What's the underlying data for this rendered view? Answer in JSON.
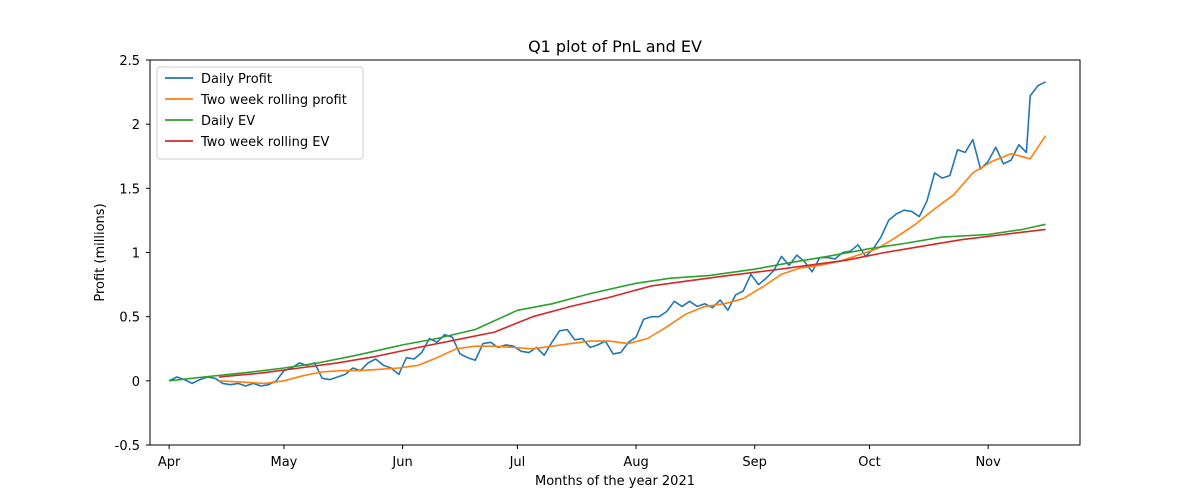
{
  "chart_data": {
    "type": "line",
    "title": "Q1 plot of PnL and EV",
    "xlabel": "Months of the year 2021",
    "ylabel": "Profit (millions)",
    "xlim": [
      "2021-03-27",
      "2021-11-25"
    ],
    "ylim": [
      -0.5,
      2.5
    ],
    "x_ticks": [
      {
        "date": "2021-04-01",
        "label": "Apr"
      },
      {
        "date": "2021-05-01",
        "label": "May"
      },
      {
        "date": "2021-06-01",
        "label": "Jun"
      },
      {
        "date": "2021-07-01",
        "label": "Jul"
      },
      {
        "date": "2021-08-01",
        "label": "Aug"
      },
      {
        "date": "2021-09-01",
        "label": "Sep"
      },
      {
        "date": "2021-10-01",
        "label": "Oct"
      },
      {
        "date": "2021-11-01",
        "label": "Nov"
      }
    ],
    "y_ticks": [
      {
        "value": -0.5,
        "label": "-0.5"
      },
      {
        "value": 0,
        "label": "0"
      },
      {
        "value": 0.5,
        "label": "0.5"
      },
      {
        "value": 1,
        "label": "1"
      },
      {
        "value": 1.5,
        "label": "1.5"
      },
      {
        "value": 2,
        "label": "2"
      },
      {
        "value": 2.5,
        "label": "2.5"
      }
    ],
    "grid": false,
    "legend_position": "top-left",
    "series": [
      {
        "name": "Daily Profit",
        "color": "#1f77b4",
        "points": [
          [
            "2021-04-01",
            0.0
          ],
          [
            "2021-04-03",
            0.03
          ],
          [
            "2021-04-05",
            0.01
          ],
          [
            "2021-04-07",
            -0.02
          ],
          [
            "2021-04-09",
            0.01
          ],
          [
            "2021-04-11",
            0.03
          ],
          [
            "2021-04-13",
            0.02
          ],
          [
            "2021-04-15",
            -0.02
          ],
          [
            "2021-04-17",
            -0.03
          ],
          [
            "2021-04-19",
            -0.02
          ],
          [
            "2021-04-21",
            -0.04
          ],
          [
            "2021-04-23",
            -0.02
          ],
          [
            "2021-04-25",
            -0.04
          ],
          [
            "2021-04-27",
            -0.03
          ],
          [
            "2021-04-29",
            0.0
          ],
          [
            "2021-05-01",
            0.08
          ],
          [
            "2021-05-03",
            0.1
          ],
          [
            "2021-05-05",
            0.14
          ],
          [
            "2021-05-07",
            0.12
          ],
          [
            "2021-05-09",
            0.14
          ],
          [
            "2021-05-11",
            0.02
          ],
          [
            "2021-05-13",
            0.01
          ],
          [
            "2021-05-15",
            0.03
          ],
          [
            "2021-05-17",
            0.05
          ],
          [
            "2021-05-19",
            0.1
          ],
          [
            "2021-05-21",
            0.08
          ],
          [
            "2021-05-23",
            0.14
          ],
          [
            "2021-05-25",
            0.17
          ],
          [
            "2021-05-27",
            0.12
          ],
          [
            "2021-05-29",
            0.1
          ],
          [
            "2021-05-31",
            0.05
          ],
          [
            "2021-06-02",
            0.18
          ],
          [
            "2021-06-04",
            0.17
          ],
          [
            "2021-06-06",
            0.22
          ],
          [
            "2021-06-08",
            0.33
          ],
          [
            "2021-06-10",
            0.3
          ],
          [
            "2021-06-12",
            0.36
          ],
          [
            "2021-06-14",
            0.34
          ],
          [
            "2021-06-16",
            0.21
          ],
          [
            "2021-06-18",
            0.18
          ],
          [
            "2021-06-20",
            0.16
          ],
          [
            "2021-06-22",
            0.29
          ],
          [
            "2021-06-24",
            0.3
          ],
          [
            "2021-06-26",
            0.26
          ],
          [
            "2021-06-28",
            0.28
          ],
          [
            "2021-06-30",
            0.27
          ],
          [
            "2021-07-02",
            0.23
          ],
          [
            "2021-07-04",
            0.22
          ],
          [
            "2021-07-06",
            0.26
          ],
          [
            "2021-07-08",
            0.2
          ],
          [
            "2021-07-10",
            0.3
          ],
          [
            "2021-07-12",
            0.39
          ],
          [
            "2021-07-14",
            0.4
          ],
          [
            "2021-07-16",
            0.32
          ],
          [
            "2021-07-18",
            0.33
          ],
          [
            "2021-07-20",
            0.26
          ],
          [
            "2021-07-22",
            0.28
          ],
          [
            "2021-07-24",
            0.31
          ],
          [
            "2021-07-26",
            0.21
          ],
          [
            "2021-07-28",
            0.22
          ],
          [
            "2021-07-30",
            0.3
          ],
          [
            "2021-08-01",
            0.34
          ],
          [
            "2021-08-03",
            0.48
          ],
          [
            "2021-08-05",
            0.5
          ],
          [
            "2021-08-07",
            0.5
          ],
          [
            "2021-08-09",
            0.54
          ],
          [
            "2021-08-11",
            0.62
          ],
          [
            "2021-08-13",
            0.58
          ],
          [
            "2021-08-15",
            0.62
          ],
          [
            "2021-08-17",
            0.58
          ],
          [
            "2021-08-19",
            0.6
          ],
          [
            "2021-08-21",
            0.57
          ],
          [
            "2021-08-23",
            0.63
          ],
          [
            "2021-08-25",
            0.55
          ],
          [
            "2021-08-27",
            0.67
          ],
          [
            "2021-08-29",
            0.7
          ],
          [
            "2021-08-31",
            0.83
          ],
          [
            "2021-09-02",
            0.75
          ],
          [
            "2021-09-04",
            0.8
          ],
          [
            "2021-09-06",
            0.86
          ],
          [
            "2021-09-08",
            0.97
          ],
          [
            "2021-09-10",
            0.9
          ],
          [
            "2021-09-12",
            0.98
          ],
          [
            "2021-09-14",
            0.93
          ],
          [
            "2021-09-16",
            0.85
          ],
          [
            "2021-09-18",
            0.96
          ],
          [
            "2021-09-20",
            0.96
          ],
          [
            "2021-09-22",
            0.95
          ],
          [
            "2021-09-24",
            1.0
          ],
          [
            "2021-09-26",
            1.01
          ],
          [
            "2021-09-28",
            1.06
          ],
          [
            "2021-09-30",
            0.97
          ],
          [
            "2021-10-02",
            1.03
          ],
          [
            "2021-10-04",
            1.12
          ],
          [
            "2021-10-06",
            1.25
          ],
          [
            "2021-10-08",
            1.3
          ],
          [
            "2021-10-10",
            1.33
          ],
          [
            "2021-10-12",
            1.32
          ],
          [
            "2021-10-14",
            1.28
          ],
          [
            "2021-10-16",
            1.4
          ],
          [
            "2021-10-18",
            1.62
          ],
          [
            "2021-10-20",
            1.58
          ],
          [
            "2021-10-22",
            1.6
          ],
          [
            "2021-10-24",
            1.8
          ],
          [
            "2021-10-26",
            1.78
          ],
          [
            "2021-10-28",
            1.88
          ],
          [
            "2021-10-30",
            1.65
          ],
          [
            "2021-11-01",
            1.71
          ],
          [
            "2021-11-03",
            1.82
          ],
          [
            "2021-11-05",
            1.69
          ],
          [
            "2021-11-07",
            1.72
          ],
          [
            "2021-11-09",
            1.84
          ],
          [
            "2021-11-11",
            1.78
          ],
          [
            "2021-11-12",
            2.22
          ],
          [
            "2021-11-14",
            2.3
          ],
          [
            "2021-11-16",
            2.33
          ]
        ]
      },
      {
        "name": "Two week rolling profit",
        "color": "#ff7f0e",
        "points": [
          [
            "2021-04-14",
            0.0
          ],
          [
            "2021-04-20",
            -0.01
          ],
          [
            "2021-04-26",
            -0.02
          ],
          [
            "2021-05-01",
            0.0
          ],
          [
            "2021-05-06",
            0.04
          ],
          [
            "2021-05-11",
            0.07
          ],
          [
            "2021-05-16",
            0.08
          ],
          [
            "2021-05-21",
            0.08
          ],
          [
            "2021-05-26",
            0.09
          ],
          [
            "2021-05-31",
            0.1
          ],
          [
            "2021-06-05",
            0.12
          ],
          [
            "2021-06-10",
            0.18
          ],
          [
            "2021-06-15",
            0.25
          ],
          [
            "2021-06-20",
            0.27
          ],
          [
            "2021-06-25",
            0.27
          ],
          [
            "2021-06-30",
            0.26
          ],
          [
            "2021-07-05",
            0.25
          ],
          [
            "2021-07-10",
            0.27
          ],
          [
            "2021-07-15",
            0.29
          ],
          [
            "2021-07-20",
            0.31
          ],
          [
            "2021-07-25",
            0.31
          ],
          [
            "2021-07-30",
            0.29
          ],
          [
            "2021-08-04",
            0.33
          ],
          [
            "2021-08-09",
            0.42
          ],
          [
            "2021-08-14",
            0.52
          ],
          [
            "2021-08-19",
            0.58
          ],
          [
            "2021-08-24",
            0.6
          ],
          [
            "2021-08-29",
            0.64
          ],
          [
            "2021-09-03",
            0.73
          ],
          [
            "2021-09-08",
            0.83
          ],
          [
            "2021-09-13",
            0.88
          ],
          [
            "2021-09-18",
            0.9
          ],
          [
            "2021-09-23",
            0.93
          ],
          [
            "2021-09-28",
            0.98
          ],
          [
            "2021-10-03",
            1.03
          ],
          [
            "2021-10-08",
            1.12
          ],
          [
            "2021-10-13",
            1.22
          ],
          [
            "2021-10-18",
            1.34
          ],
          [
            "2021-10-23",
            1.45
          ],
          [
            "2021-10-28",
            1.62
          ],
          [
            "2021-11-02",
            1.71
          ],
          [
            "2021-11-07",
            1.77
          ],
          [
            "2021-11-12",
            1.73
          ],
          [
            "2021-11-16",
            1.91
          ]
        ]
      },
      {
        "name": "Daily EV",
        "color": "#2ca02c",
        "points": [
          [
            "2021-04-01",
            0.0
          ],
          [
            "2021-04-10",
            0.03
          ],
          [
            "2021-04-20",
            0.06
          ],
          [
            "2021-05-01",
            0.1
          ],
          [
            "2021-05-10",
            0.14
          ],
          [
            "2021-05-20",
            0.2
          ],
          [
            "2021-06-01",
            0.28
          ],
          [
            "2021-06-10",
            0.33
          ],
          [
            "2021-06-20",
            0.4
          ],
          [
            "2021-07-01",
            0.55
          ],
          [
            "2021-07-10",
            0.6
          ],
          [
            "2021-07-20",
            0.68
          ],
          [
            "2021-08-01",
            0.76
          ],
          [
            "2021-08-10",
            0.8
          ],
          [
            "2021-08-20",
            0.82
          ],
          [
            "2021-09-01",
            0.87
          ],
          [
            "2021-09-10",
            0.92
          ],
          [
            "2021-09-20",
            0.97
          ],
          [
            "2021-10-01",
            1.03
          ],
          [
            "2021-10-10",
            1.07
          ],
          [
            "2021-10-20",
            1.12
          ],
          [
            "2021-11-01",
            1.14
          ],
          [
            "2021-11-10",
            1.18
          ],
          [
            "2021-11-16",
            1.22
          ]
        ]
      },
      {
        "name": "Two week rolling EV",
        "color": "#d62728",
        "points": [
          [
            "2021-04-14",
            0.03
          ],
          [
            "2021-04-25",
            0.06
          ],
          [
            "2021-05-05",
            0.1
          ],
          [
            "2021-05-15",
            0.14
          ],
          [
            "2021-05-25",
            0.19
          ],
          [
            "2021-06-05",
            0.26
          ],
          [
            "2021-06-15",
            0.32
          ],
          [
            "2021-06-25",
            0.38
          ],
          [
            "2021-07-05",
            0.5
          ],
          [
            "2021-07-15",
            0.58
          ],
          [
            "2021-07-25",
            0.65
          ],
          [
            "2021-08-05",
            0.74
          ],
          [
            "2021-08-15",
            0.78
          ],
          [
            "2021-08-25",
            0.82
          ],
          [
            "2021-09-05",
            0.86
          ],
          [
            "2021-09-15",
            0.9
          ],
          [
            "2021-09-25",
            0.94
          ],
          [
            "2021-10-05",
            1.0
          ],
          [
            "2021-10-15",
            1.05
          ],
          [
            "2021-10-25",
            1.1
          ],
          [
            "2021-11-05",
            1.14
          ],
          [
            "2021-11-16",
            1.18
          ]
        ]
      }
    ]
  }
}
